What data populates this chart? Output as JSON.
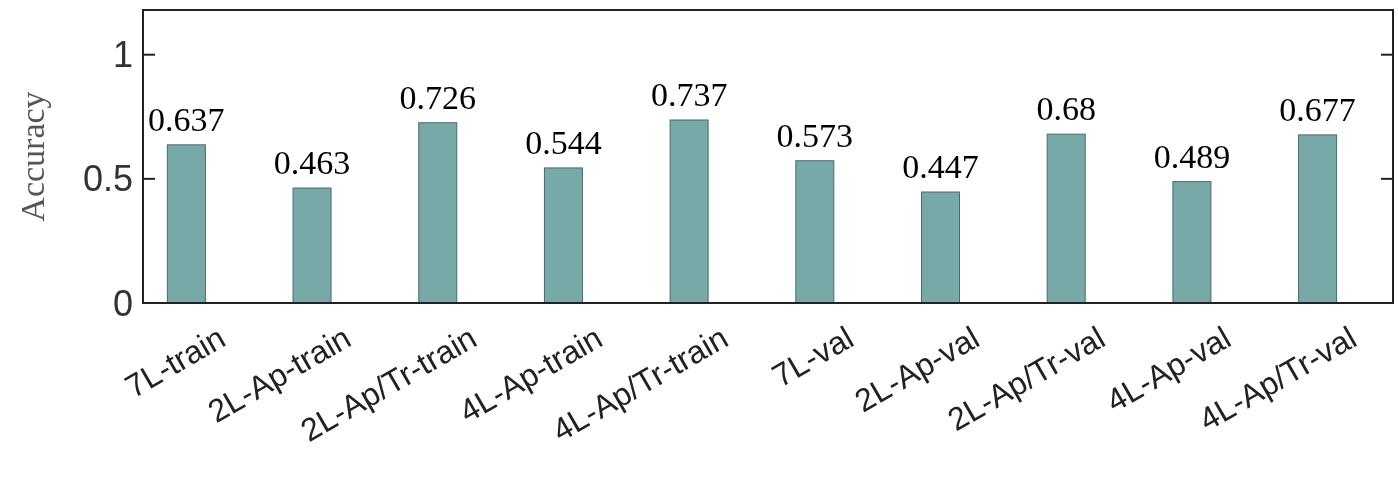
{
  "chart_data": {
    "type": "bar",
    "ylabel": "Accuracy",
    "categories": [
      "7L-train",
      "2L-Ap-train",
      "2L-Ap/Tr-train",
      "4L-Ap-train",
      "4L-Ap/Tr-train",
      "7L-val",
      "2L-Ap-val",
      "2L-Ap/Tr-val",
      "4L-Ap-val",
      "4L-Ap/Tr-val"
    ],
    "values": [
      0.637,
      0.463,
      0.726,
      0.544,
      0.737,
      0.573,
      0.447,
      0.68,
      0.489,
      0.677
    ],
    "color": "#76a9a7",
    "ylim": [
      0,
      1.18
    ],
    "yticks": [
      0,
      {
        "value": 0.5,
        "label": "0.5"
      },
      1
    ],
    "data_labels": true
  }
}
